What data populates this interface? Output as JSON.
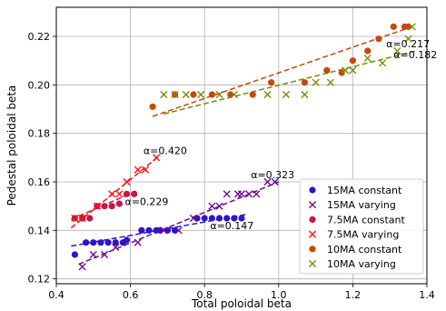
{
  "chart_data": {
    "type": "scatter",
    "title": "",
    "xlabel": "Total poloidal beta",
    "ylabel": "Pedestal poloidal beta",
    "xlim": [
      0.4,
      1.4
    ],
    "ylim": [
      0.118,
      0.232
    ],
    "xticks": [
      0.4,
      0.6,
      0.8,
      1.0,
      1.2,
      1.4
    ],
    "xtick_labels": [
      "0.4",
      "0.6",
      "0.8",
      "1.0",
      "1.2",
      "1.4"
    ],
    "yticks": [
      0.12,
      0.14,
      0.16,
      0.18,
      0.2,
      0.22
    ],
    "ytick_labels": [
      "0.12",
      "0.14",
      "0.16",
      "0.18",
      "0.20",
      "0.22"
    ],
    "grid": true,
    "legend_position": "bottom-right",
    "series": [
      {
        "name": "15MA constant",
        "marker": "circle",
        "color": "#2f14c8",
        "points": [
          [
            0.45,
            0.13
          ],
          [
            0.48,
            0.135
          ],
          [
            0.5,
            0.135
          ],
          [
            0.52,
            0.135
          ],
          [
            0.54,
            0.135
          ],
          [
            0.56,
            0.135
          ],
          [
            0.58,
            0.135
          ],
          [
            0.59,
            0.136
          ],
          [
            0.63,
            0.14
          ],
          [
            0.65,
            0.14
          ],
          [
            0.67,
            0.14
          ],
          [
            0.68,
            0.14
          ],
          [
            0.7,
            0.14
          ],
          [
            0.72,
            0.14
          ],
          [
            0.78,
            0.145
          ],
          [
            0.8,
            0.145
          ],
          [
            0.82,
            0.145
          ],
          [
            0.84,
            0.145
          ],
          [
            0.86,
            0.145
          ],
          [
            0.88,
            0.145
          ],
          [
            0.9,
            0.145
          ]
        ]
      },
      {
        "name": "15MA varying",
        "marker": "x",
        "color": "#6c0a8e",
        "points": [
          [
            0.47,
            0.125
          ],
          [
            0.5,
            0.13
          ],
          [
            0.53,
            0.13
          ],
          [
            0.56,
            0.133
          ],
          [
            0.62,
            0.135
          ],
          [
            0.69,
            0.14
          ],
          [
            0.73,
            0.14
          ],
          [
            0.77,
            0.145
          ],
          [
            0.82,
            0.15
          ],
          [
            0.84,
            0.15
          ],
          [
            0.86,
            0.155
          ],
          [
            0.89,
            0.155
          ],
          [
            0.9,
            0.155
          ],
          [
            0.92,
            0.155
          ],
          [
            0.94,
            0.155
          ],
          [
            0.97,
            0.16
          ],
          [
            0.99,
            0.16
          ]
        ]
      },
      {
        "name": "7.5MA constant",
        "marker": "circle",
        "color": "#c8164a",
        "points": [
          [
            0.45,
            0.145
          ],
          [
            0.47,
            0.145
          ],
          [
            0.49,
            0.145
          ],
          [
            0.51,
            0.15
          ],
          [
            0.53,
            0.15
          ],
          [
            0.55,
            0.15
          ],
          [
            0.57,
            0.151
          ],
          [
            0.59,
            0.155
          ],
          [
            0.61,
            0.155
          ]
        ]
      },
      {
        "name": "7.5MA varying",
        "marker": "x",
        "color": "#ff1010",
        "points": [
          [
            0.45,
            0.145
          ],
          [
            0.47,
            0.145
          ],
          [
            0.51,
            0.15
          ],
          [
            0.55,
            0.155
          ],
          [
            0.57,
            0.155
          ],
          [
            0.59,
            0.16
          ],
          [
            0.62,
            0.165
          ],
          [
            0.64,
            0.165
          ],
          [
            0.67,
            0.17
          ]
        ]
      },
      {
        "name": "10MA constant",
        "marker": "circle",
        "color": "#c8460a",
        "points": [
          [
            0.66,
            0.191
          ],
          [
            0.72,
            0.196
          ],
          [
            0.77,
            0.196
          ],
          [
            0.82,
            0.196
          ],
          [
            0.87,
            0.196
          ],
          [
            0.93,
            0.196
          ],
          [
            0.98,
            0.201
          ],
          [
            1.07,
            0.201
          ],
          [
            1.13,
            0.206
          ],
          [
            1.17,
            0.205
          ],
          [
            1.2,
            0.21
          ],
          [
            1.24,
            0.214
          ],
          [
            1.27,
            0.219
          ],
          [
            1.31,
            0.224
          ],
          [
            1.34,
            0.224
          ],
          [
            1.35,
            0.224
          ]
        ]
      },
      {
        "name": "10MA varying",
        "marker": "x",
        "color": "#7c8a0a",
        "points": [
          [
            0.69,
            0.196
          ],
          [
            0.72,
            0.196
          ],
          [
            0.75,
            0.196
          ],
          [
            0.79,
            0.196
          ],
          [
            0.84,
            0.196
          ],
          [
            0.88,
            0.196
          ],
          [
            0.97,
            0.196
          ],
          [
            1.02,
            0.196
          ],
          [
            1.07,
            0.196
          ],
          [
            1.1,
            0.201
          ],
          [
            1.14,
            0.201
          ],
          [
            1.18,
            0.206
          ],
          [
            1.2,
            0.206
          ],
          [
            1.24,
            0.211
          ],
          [
            1.28,
            0.209
          ],
          [
            1.32,
            0.214
          ],
          [
            1.35,
            0.219
          ],
          [
            1.36,
            0.224
          ]
        ]
      }
    ],
    "fits": [
      {
        "color": "#2f14c8",
        "x": [
          0.44,
          0.91
        ],
        "y": [
          0.1335,
          0.1465
        ]
      },
      {
        "color": "#6c0a8e",
        "x": [
          0.46,
          1.0
        ],
        "y": [
          0.126,
          0.16
        ]
      },
      {
        "color": "#c8164a",
        "x": [
          0.44,
          0.62
        ],
        "y": [
          0.1445,
          0.1565
        ]
      },
      {
        "color": "#ff1010",
        "x": [
          0.44,
          0.68
        ],
        "y": [
          0.141,
          0.171
        ]
      },
      {
        "color": "#c8460a",
        "x": [
          0.66,
          1.36
        ],
        "y": [
          0.187,
          0.224
        ]
      },
      {
        "color": "#7c8a0a",
        "x": [
          0.69,
          1.37
        ],
        "y": [
          0.188,
          0.214
        ]
      }
    ],
    "annotations": [
      {
        "text": "α=0.420",
        "x": 0.635,
        "y": 0.1715
      },
      {
        "text": "α=0.229",
        "x": 0.585,
        "y": 0.1505
      },
      {
        "text": "α=0.323",
        "x": 0.925,
        "y": 0.1615
      },
      {
        "text": "α=0.147",
        "x": 0.815,
        "y": 0.1405
      },
      {
        "text": "α=0.217",
        "x": 1.29,
        "y": 0.2155
      },
      {
        "text": "α=0.182",
        "x": 1.31,
        "y": 0.211
      }
    ]
  }
}
